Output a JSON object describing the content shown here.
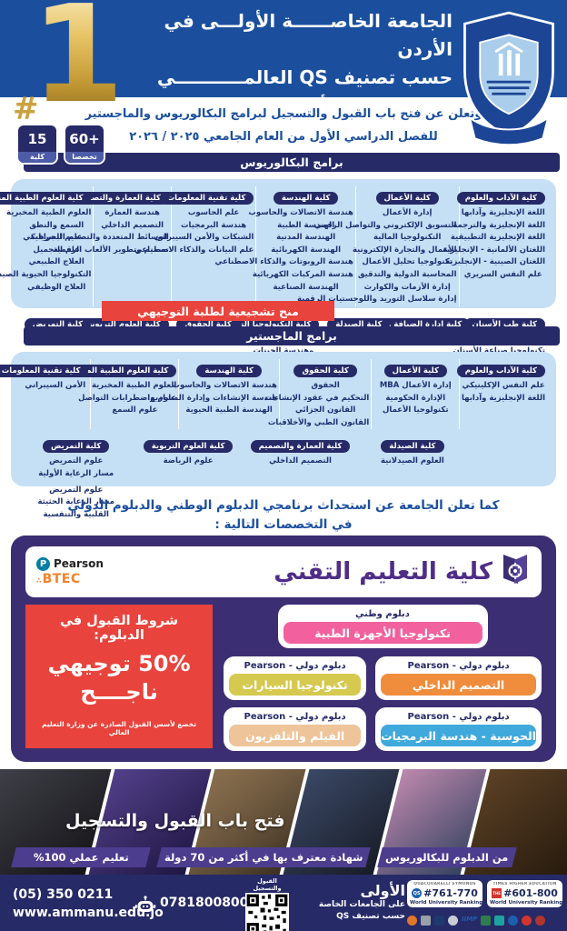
{
  "header": {
    "title_lines": [
      "الجامعة الخاصــــــة الأولـــى في الأردن",
      "حسب تصنيف QS العالمـــــــــــي",
      "جامعة عمّان الأهليّة تهنئ الطلبة الناجحين"
    ],
    "rank_hash": "#",
    "rank_number": "1",
    "announcement_lines": [
      "وتعلن عن فتح باب القبول والتسجيل لبرامج البكالوريوس والماجستير",
      "للفصل الدراسي الأول من العام الجامعي ٢٠٢٥ / ٢٠٢٦"
    ],
    "badges": [
      {
        "value": "15",
        "label": "كلية"
      },
      {
        "value": "60+",
        "label": "تخصصا"
      }
    ]
  },
  "bachelor": {
    "banner": "برامج البكالوريوس",
    "scholarship_badge": "منح تشجيعية لطلبة التوجيهي",
    "row1": [
      {
        "name": "كلية الآداب والعلوم",
        "programs": [
          "اللغة الإنجليزية وآدابها",
          "اللغة الإنجليزية والترجمة",
          "اللغة الإنجليزية التطبيقية",
          "اللغتان الألمانية - الإنجليزية",
          "اللغتان الصينية - الإنجليزية",
          "علم النفس السريري"
        ]
      },
      {
        "name": "كلية الأعمال",
        "programs": [
          "إدارة الأعمال",
          "التسويق الإلكتروني والتواصل الرقمي",
          "التكنولوجيا المالية",
          "الأعمال والتجارة الإلكترونية",
          "تكنولوجيا تحليل الأعمال",
          "المحاسبة الدولية والتدقيق",
          "إدارة الأزمات والكوارث",
          "إدارة سلاسل التوريد واللوجستيات الرقمية"
        ]
      },
      {
        "name": "كلية الهندسة",
        "programs": [
          "هندسة الاتصالات والحاسوب",
          "الهندسة الطبية",
          "الهندسة المدنية",
          "الهندسة الكهربائية",
          "هندسة الروبوتات والذكاء الاصطناعي",
          "هندسة المركبات الكهربائية",
          "الهندسة الصناعية"
        ]
      },
      {
        "name": "كلية تقنية المعلومات",
        "programs": [
          "علم الحاسوب",
          "هندسة البرمجيات",
          "الشبكات والأمن السيبراني",
          "علم البيانات والذكاء الاصطناعي"
        ]
      },
      {
        "name": "كلية العمارة والتصميم",
        "programs": [
          "هندسة العمارة",
          "التصميم الداخلي",
          "الوسائط المتعددة والتصميم الجرافيكي",
          "تصميم وتطوير الألعاب الرقمية"
        ]
      },
      {
        "name": "كلية العلوم الطبية المساندة",
        "programs": [
          "العلوم الطبية المخبرية",
          "السمع والنطق",
          "علم البصريات",
          "علم التجميل",
          "العلاج الطبيعي",
          "التكنولوجيا الحيوية الصيدلانية",
          "العلاج الوظيفي"
        ]
      }
    ],
    "row2": [
      {
        "name": "كلية طب الأسنان",
        "programs": [
          "دكتور طب الأسنان",
          "تكنولوجيا صناعة الأسنان"
        ]
      },
      {
        "name": "كلية إدارة الضيافة والسياحة",
        "programs": [
          "إدارة الضيافة وفنون الطهي"
        ]
      },
      {
        "name": "كلية الصيدلة",
        "programs": [
          "الصيدلة"
        ]
      },
      {
        "name": "كلية التكنولوجيا الزراعية",
        "programs": [
          "التكنولوجيا الزراعية الحيوية",
          "وهندسة الجينات"
        ]
      },
      {
        "name": "كلية الحقوق",
        "programs": [
          "الحقوق"
        ]
      },
      {
        "name": "كلية العلوم التربوية",
        "programs": [
          "التربية البدنية والصحية"
        ]
      },
      {
        "name": "كلية التمريض",
        "programs": [
          "التمريض"
        ]
      }
    ]
  },
  "master": {
    "banner": "برامج الماجستير",
    "row1": [
      {
        "name": "كلية الآداب والعلوم",
        "programs": [
          "علم النفس الإكلينيكي",
          "اللغة الإنجليزية وآدابها"
        ]
      },
      {
        "name": "كلية الأعمال",
        "programs": [
          "إدارة الأعمال MBA",
          "الإدارة الحكومية",
          "تكنولوجيا الأعمال"
        ]
      },
      {
        "name": "كلية الحقوق",
        "programs": [
          "الحقوق",
          "التحكيم في عقود الإنشاءات",
          "القانون الجزائي",
          "القانون الطبي والأخلاقيات"
        ]
      },
      {
        "name": "كلية الهندسة",
        "programs": [
          "هندسة الاتصالات والحاسوب",
          "هندسة الإنشاءات وإدارة المشاريع",
          "الهندسة الطبية الحيوية"
        ]
      },
      {
        "name": "كلية العلوم الطبية المساندة",
        "programs": [
          "العلوم الطبية المخبرية",
          "علوم واضطرابات التواصل",
          "علوم السمع"
        ]
      },
      {
        "name": "كلية تقنية المعلومات",
        "programs": [
          "الأمن السيبراني"
        ]
      }
    ],
    "row2": [
      {
        "name": "كلية الصيدلة",
        "programs": [
          "العلوم الصيدلانية"
        ]
      },
      {
        "name": "كلية العمارة والتصميم",
        "programs": [
          "التصميم الداخلي"
        ]
      },
      {
        "name": "كلية العلوم التربوية",
        "programs": [
          "علوم الرياضة"
        ]
      },
      {
        "name": "كلية التمريض",
        "programs": [
          "علوم التمريض",
          "مسار الرعاية الأولية",
          "",
          "علوم التمريض",
          "مسار الرعاية الحثيثة",
          "القلبية والتنفسية"
        ]
      }
    ]
  },
  "diploma": {
    "intro_lines": [
      "كما تعلن الجامعة عن استحداث برنامجي الدبلوم الوطني والدبلوم الدولي",
      "في التخصصات التالية :"
    ],
    "college": {
      "title": "كلية التعليم التقني",
      "pearson": "Pearson",
      "btec": "BTEC"
    },
    "conditions": {
      "title": "شروط القبول في الدبلوم:",
      "percent_line": "50% توجيهي",
      "pass_line": "ناجــــح",
      "note": "تخضع لأسس القبول الصادرة عن وزارة التعليم العالي"
    },
    "national": {
      "label": "دبلوم وطني",
      "name": "تكنولوجيا الأجهزة الطبية",
      "color": "#f2619e"
    },
    "international": [
      {
        "label": "دبلوم دولي - Pearson",
        "name": "التصميم الداخلي",
        "color": "#ef8d3d"
      },
      {
        "label": "دبلوم دولي - Pearson",
        "name": "تكنولوجيا السيارات",
        "color": "#d5c94f"
      },
      {
        "label": "دبلوم دولي - Pearson",
        "name": "الحوسبة - هندسة البرمجيات",
        "color": "#3fa9dc"
      },
      {
        "label": "دبلوم دولي - Pearson",
        "name": "الفيلم والتلفزيون",
        "color": "#eec49a"
      }
    ]
  },
  "photo_strip": {
    "headline": "فتح باب القبول والتسجيل",
    "badges": [
      "من الدبلوم للبكالوريوس",
      "شهادة معترف بها في أكثر من 70 دولة",
      "تعليم عملي 100%"
    ]
  },
  "footer": {
    "phone": "(05) 350 0211",
    "website": "www.ammanu.edu.jo",
    "mobile": "0781800800",
    "qr_label": "القبول والتسجيل",
    "first": {
      "title": "الأولى",
      "line1": "على الجامعات الخاصة",
      "line2": "حسب تصنيف QS"
    },
    "rankings": [
      {
        "org": "QUACQUARELLI SYMONDS",
        "logo": "QS",
        "rank": "#761-770",
        "label": "World University Ranking"
      },
      {
        "org": "TIMES HIGHER EDUCATION",
        "logo": "THE",
        "rank": "#601-800",
        "label": "World University Ranking"
      }
    ],
    "accreditation": [
      {
        "shape": "circle",
        "color": "#e0762a"
      },
      {
        "shape": "rect",
        "color": "#9aa0a8"
      },
      {
        "shape": "rect",
        "color": "#1d3a6e"
      },
      {
        "shape": "circle",
        "color": "#c9ced6"
      },
      {
        "shape": "text",
        "color": "#1d5fae",
        "label": "IIMP"
      },
      {
        "shape": "rect",
        "color": "#2e7d4f"
      },
      {
        "shape": "rect",
        "color": "#1fa3a0"
      },
      {
        "shape": "circle",
        "color": "#1d5fae"
      },
      {
        "shape": "circle",
        "color": "#d3342e"
      },
      {
        "shape": "circle",
        "color": "#b1342e"
      }
    ]
  }
}
